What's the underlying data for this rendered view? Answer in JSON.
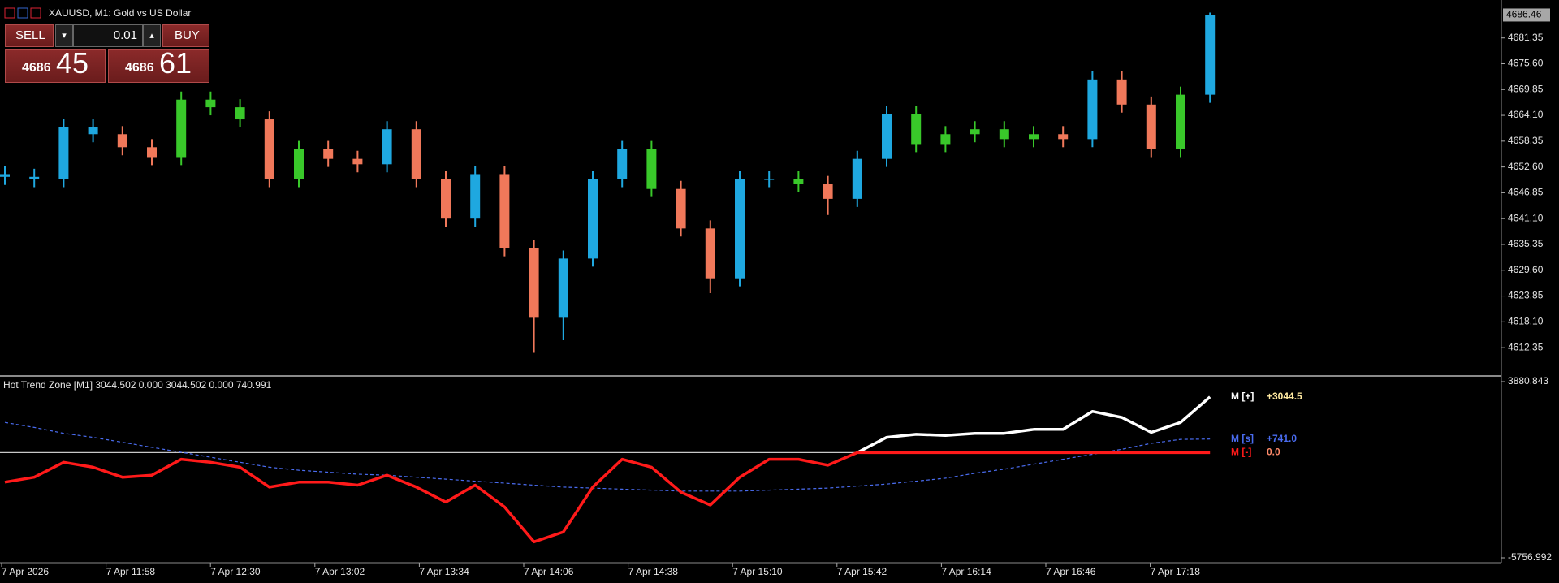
{
  "header": {
    "symbol": "XAUUSD, M1:  Gold vs US Dollar"
  },
  "trade_panel": {
    "sell": "SELL",
    "buy": "BUY",
    "lot": "0.01",
    "bid_big": "4686",
    "bid_small": "45",
    "ask_big": "4686",
    "ask_small": "61"
  },
  "chart_data": [
    {
      "type": "candlestick",
      "ylim": [
        4606.4,
        4689.8
      ],
      "yticks": [
        4681.35,
        {
          "value": 4675.6,
          "label": "4675.60"
        },
        4669.85,
        {
          "value": 4664.1,
          "label": "4664.10"
        },
        4658.35,
        {
          "value": 4652.6,
          "label": "4652.60"
        },
        4646.85,
        {
          "value": 4641.1,
          "label": "4641.10"
        },
        4635.35,
        {
          "value": 4629.6,
          "label": "4629.60"
        },
        4623.85,
        {
          "value": 4618.1,
          "label": "4618.10"
        },
        4612.35
      ],
      "x_labels": [
        "7 Apr 2026",
        "7 Apr 11:58",
        "7 Apr 12:30",
        "7 Apr 13:02",
        "7 Apr 13:34",
        "7 Apr 14:06",
        "7 Apr 14:38",
        "7 Apr 15:10",
        "7 Apr 15:42",
        "7 Apr 16:14",
        "7 Apr 16:46",
        "7 Apr 17:18"
      ],
      "open": [
        4651.0,
        4650.4,
        4649.9,
        4661.4,
        4659.9,
        4657.0,
        4654.8,
        4667.6,
        4665.9,
        4663.2,
        4649.9,
        4656.6,
        4654.4,
        4653.2,
        4661.0,
        4649.9,
        4641.1,
        4651.0,
        4634.5,
        4619.0,
        4632.2,
        4649.9,
        4656.6,
        4647.7,
        4638.9,
        4627.8,
        4649.9,
        4649.9,
        4648.8,
        4645.5,
        4654.4,
        4664.3,
        4657.7,
        4659.9,
        4661.0,
        4658.8,
        4659.9,
        4658.8,
        4672.1,
        4666.5,
        4656.6,
        4668.7
      ],
      "high": [
        4652.8,
        4652.2,
        4663.2,
        4663.2,
        4661.7,
        4658.8,
        4669.4,
        4669.4,
        4667.7,
        4665.0,
        4658.4,
        4658.4,
        4656.2,
        4662.8,
        4662.8,
        4651.7,
        4652.8,
        4652.8,
        4636.3,
        4634.0,
        4651.7,
        4658.4,
        4658.4,
        4649.5,
        4640.7,
        4651.7,
        4651.7,
        4651.7,
        4650.6,
        4656.2,
        4666.1,
        4666.1,
        4661.7,
        4662.8,
        4662.8,
        4661.7,
        4661.7,
        4673.9,
        4673.9,
        4668.3,
        4670.5,
        4687.0
      ],
      "low": [
        4648.6,
        4648.1,
        4648.1,
        4658.1,
        4655.2,
        4653.0,
        4653.0,
        4664.1,
        4661.4,
        4648.1,
        4648.1,
        4652.6,
        4651.4,
        4651.4,
        4648.1,
        4639.3,
        4639.3,
        4632.7,
        4611.2,
        4614.0,
        4630.4,
        4648.1,
        4645.9,
        4637.1,
        4624.5,
        4626.0,
        4648.1,
        4647.0,
        4641.9,
        4643.7,
        4652.6,
        4655.9,
        4655.9,
        4658.1,
        4657.0,
        4657.0,
        4657.0,
        4657.0,
        4664.7,
        4654.8,
        4654.8,
        4666.9
      ],
      "close": [
        4650.4,
        4649.9,
        4661.4,
        4659.9,
        4657.0,
        4654.8,
        4667.6,
        4665.9,
        4663.2,
        4649.9,
        4656.6,
        4654.4,
        4653.2,
        4661.0,
        4649.9,
        4641.1,
        4651.0,
        4634.5,
        4619.0,
        4632.2,
        4649.9,
        4656.6,
        4647.7,
        4638.9,
        4627.8,
        4649.9,
        4649.9,
        4648.8,
        4645.5,
        4654.4,
        4664.3,
        4657.7,
        4659.9,
        4661.0,
        4658.8,
        4659.9,
        4658.8,
        4672.1,
        4666.5,
        4656.6,
        4668.7,
        4686.46
      ],
      "bar_colors": [
        "#1fa8e0",
        "#1fa8e0",
        "#1fa8e0",
        "#1fa8e0",
        "#f0785a",
        "#f0785a",
        "#39c82a",
        "#39c82a",
        "#39c82a",
        "#f0785a",
        "#39c82a",
        "#f0785a",
        "#f0785a",
        "#1fa8e0",
        "#f0785a",
        "#f0785a",
        "#1fa8e0",
        "#f0785a",
        "#f0785a",
        "#1fa8e0",
        "#1fa8e0",
        "#1fa8e0",
        "#39c82a",
        "#f0785a",
        "#f0785a",
        "#1fa8e0",
        "#1fa8e0",
        "#39c82a",
        "#f0785a",
        "#1fa8e0",
        "#1fa8e0",
        "#39c82a",
        "#39c82a",
        "#39c82a",
        "#39c82a",
        "#39c82a",
        "#f0785a",
        "#1fa8e0",
        "#f0785a",
        "#f0785a",
        "#39c82a",
        "#1fa8e0"
      ]
    },
    {
      "type": "line",
      "title": "Hot Trend Zone [M1] 3044.502 0.000 3044.502 0.000 740.991",
      "ylim": [
        -5756.992,
        3880.843
      ],
      "yticks": [
        -5756.992,
        3880.843
      ],
      "levels": [
        0
      ],
      "series": [
        {
          "name": "M [+]",
          "color": "#ffffff",
          "dashed": false,
          "values": [
            null,
            null,
            null,
            null,
            null,
            null,
            null,
            null,
            null,
            null,
            null,
            null,
            null,
            null,
            null,
            null,
            null,
            null,
            null,
            null,
            null,
            null,
            null,
            null,
            null,
            null,
            null,
            null,
            null,
            0,
            833,
            997,
            942,
            1051,
            1051,
            1269,
            1269,
            2249,
            1922,
            1105,
            1650,
            3044.5
          ],
          "value_labels": [
            null,
            null,
            null,
            null,
            null,
            null,
            null,
            null,
            null,
            null,
            null,
            null,
            null,
            null,
            null,
            null,
            null,
            null,
            null,
            null,
            null,
            null,
            null,
            null,
            null,
            null,
            null,
            null,
            null,
            null,
            null,
            null,
            null,
            null,
            null,
            null,
            null,
            null,
            null,
            null,
            null,
            "+3044.5"
          ]
        },
        {
          "name": "M [s]",
          "color": "#4a6cf0",
          "dashed": true,
          "values": [
            1650,
            1378,
            1051,
            833,
            561,
            289,
            16,
            -256,
            -528,
            -800,
            -964,
            -1073,
            -1181,
            -1236,
            -1345,
            -1454,
            -1563,
            -1672,
            -1780,
            -1889,
            -1944,
            -1998,
            -2053,
            -2107,
            -2107,
            -2107,
            -2053,
            -1998,
            -1944,
            -1835,
            -1726,
            -1563,
            -1400,
            -1127,
            -909,
            -637,
            -365,
            -93,
            180,
            506,
            724,
            741.0
          ],
          "value_labels": [
            null,
            null,
            null,
            null,
            null,
            null,
            null,
            null,
            null,
            null,
            null,
            null,
            null,
            null,
            null,
            null,
            null,
            null,
            null,
            null,
            null,
            null,
            null,
            null,
            null,
            null,
            null,
            null,
            null,
            null,
            null,
            null,
            null,
            null,
            null,
            null,
            null,
            null,
            null,
            null,
            null,
            "+741.0"
          ]
        },
        {
          "name": "M [-]",
          "color": "#ff1a1a",
          "dashed": false,
          "values": [
            -1617,
            -1345,
            -528,
            -800,
            -1345,
            -1236,
            -365,
            -528,
            -800,
            -1889,
            -1617,
            -1617,
            -1780,
            -1236,
            -1889,
            -2706,
            -1780,
            -2978,
            -4884,
            -4339,
            -1889,
            -365,
            -800,
            -2162,
            -2869,
            -1345,
            -365,
            -365,
            -691,
            0,
            0,
            0,
            0,
            0,
            0,
            0,
            0,
            0,
            0,
            0,
            0,
            0.0
          ],
          "value_labels": [
            null,
            null,
            null,
            null,
            null,
            null,
            null,
            null,
            null,
            null,
            null,
            null,
            null,
            null,
            null,
            null,
            null,
            null,
            null,
            null,
            null,
            null,
            null,
            null,
            null,
            null,
            null,
            null,
            null,
            null,
            null,
            null,
            null,
            null,
            null,
            null,
            null,
            null,
            null,
            null,
            null,
            "0.0"
          ]
        }
      ]
    }
  ]
}
